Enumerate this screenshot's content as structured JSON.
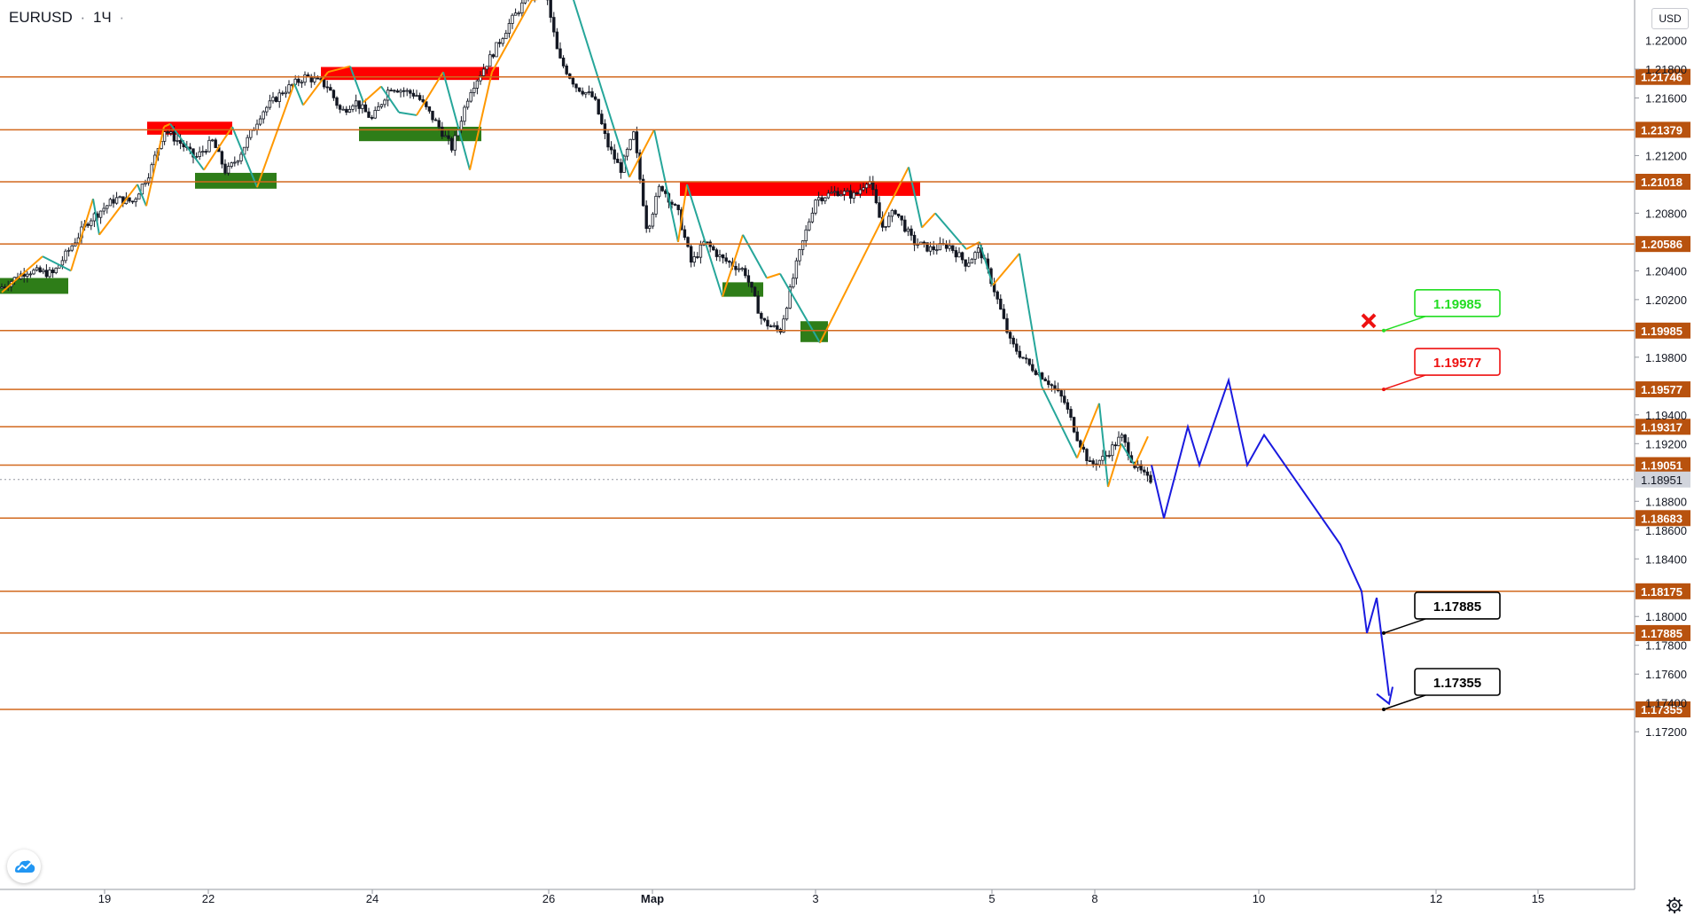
{
  "header": {
    "symbol": "EURUSD",
    "separator": "·",
    "interval": "1Ч",
    "currency_button": "USD"
  },
  "colors": {
    "level_line": "#d2691e",
    "level_label_bg": "#b8520e",
    "resistance_zone": "#ff0000",
    "support_zone": "#2e7d18",
    "zigzag_up": "#ff9800",
    "zigzag_down": "#26a69a",
    "forecast_path": "#1a1adf",
    "current_price_bg": "#d1d4dc",
    "green_callout": "#22dd22",
    "red_callout": "#ee1111",
    "black_callout": "#000000"
  },
  "icons": {
    "logo": "tradingview-cloud-icon",
    "settings": "gear-icon",
    "cancel": "cross-mark-icon"
  },
  "chart_data": {
    "type": "candlestick",
    "symbol": "EURUSD",
    "timeframe": "1Ч",
    "y_axis_ticks": [
      "1.21800",
      "1.21600",
      "1.21200",
      "1.20800",
      "1.20400",
      "1.20200",
      "1.19800",
      "1.19400",
      "1.19200",
      "1.18800",
      "1.18600",
      "1.18400",
      "1.18000",
      "1.17800",
      "1.17600",
      "1.17200"
    ],
    "y_axis_ticks_partial": [
      "1.22000",
      "1.17400"
    ],
    "x_axis_ticks": [
      "19",
      "22",
      "24",
      "26",
      "Мар",
      "3",
      "5",
      "8",
      "10",
      "12",
      "15"
    ],
    "horizontal_levels": [
      "1.21746",
      "1.21379",
      "1.21018",
      "1.20586",
      "1.19985",
      "1.19577",
      "1.19317",
      "1.19051",
      "1.18683",
      "1.18175",
      "1.17885",
      "1.17355"
    ],
    "current_price": "1.18951",
    "callouts": [
      {
        "label": "1.19985",
        "color": "green",
        "cancelled": true
      },
      {
        "label": "1.19577",
        "color": "red"
      },
      {
        "label": "1.17885",
        "color": "black"
      },
      {
        "label": "1.17355",
        "color": "black"
      }
    ],
    "resistance_zones": [
      {
        "price_top": 1.21435,
        "price_bottom": 1.21345
      },
      {
        "price_top": 1.21815,
        "price_bottom": 1.21725
      },
      {
        "price_top": 1.21018,
        "price_bottom": 1.2092
      }
    ],
    "support_zones": [
      {
        "price_top": 1.2035,
        "price_bottom": 1.2024
      },
      {
        "price_top": 1.2108,
        "price_bottom": 1.2097
      },
      {
        "price_top": 1.214,
        "price_bottom": 1.213
      },
      {
        "price_top": 1.2032,
        "price_bottom": 1.2022
      },
      {
        "price_top": 1.2005,
        "price_bottom": 1.19905
      }
    ],
    "forecast_path_prices": [
      1.19051,
      1.18683,
      1.19317,
      1.19051,
      1.1964,
      1.19051,
      1.1926,
      1.185,
      1.18175,
      1.17885,
      1.1813,
      1.1745
    ],
    "price_trend": "downtrend from 1.223 toward 1.1735 forecast"
  }
}
